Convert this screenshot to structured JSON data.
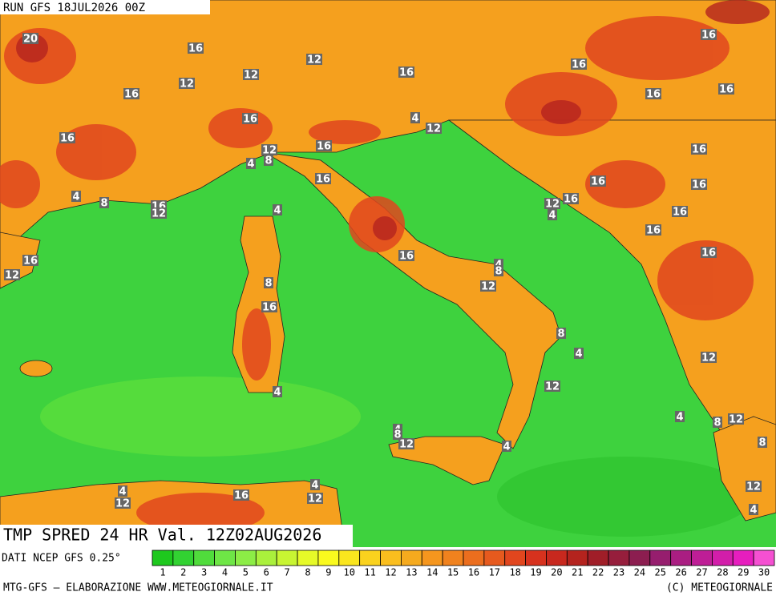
{
  "header": {
    "run": "RUN GFS 18JUL2026 00Z"
  },
  "map": {
    "title": "TMP SPRED 24 HR Val. 12Z02AUG2026",
    "labels": [
      20,
      16,
      12,
      16,
      16,
      12,
      12,
      16,
      16,
      16,
      16,
      16,
      4,
      12,
      16,
      16,
      12,
      16,
      4,
      8,
      16,
      16,
      16,
      4,
      8,
      16,
      12,
      12,
      16,
      4,
      4,
      16,
      16,
      16,
      16,
      16,
      12,
      4,
      8,
      8,
      12,
      16,
      8,
      4,
      12,
      12,
      4,
      4,
      8,
      12,
      4,
      8,
      12,
      4,
      8,
      4,
      12,
      16,
      4,
      12,
      12,
      4
    ]
  },
  "scale": {
    "source": "DATI NCEP GFS 0.25°",
    "values": [
      1,
      2,
      3,
      4,
      5,
      6,
      7,
      8,
      9,
      10,
      11,
      12,
      13,
      14,
      15,
      16,
      17,
      18,
      19,
      20,
      21,
      22,
      23,
      24,
      25,
      26,
      27,
      28,
      29,
      30
    ],
    "colors": [
      "#1ec81e",
      "#32d232",
      "#50dc3c",
      "#6ee646",
      "#8ced46",
      "#aaf03c",
      "#c8f532",
      "#e6fa28",
      "#fafa1e",
      "#fae61e",
      "#fad21e",
      "#fabe1e",
      "#f5aa1e",
      "#f5961e",
      "#f0821e",
      "#eb6e1e",
      "#e65a1e",
      "#e1461e",
      "#d7321e",
      "#c8281e",
      "#b4231e",
      "#a01e28",
      "#961e3c",
      "#8c1e50",
      "#961e6e",
      "#aa1e82",
      "#be1e96",
      "#d21eaa",
      "#e61ebe",
      "#f550d2"
    ]
  },
  "footer": {
    "left": "MTG-GFS — ELABORAZIONE WWW.METEOGIORNALE.IT",
    "right": "(C) METEOGIORNALE"
  }
}
